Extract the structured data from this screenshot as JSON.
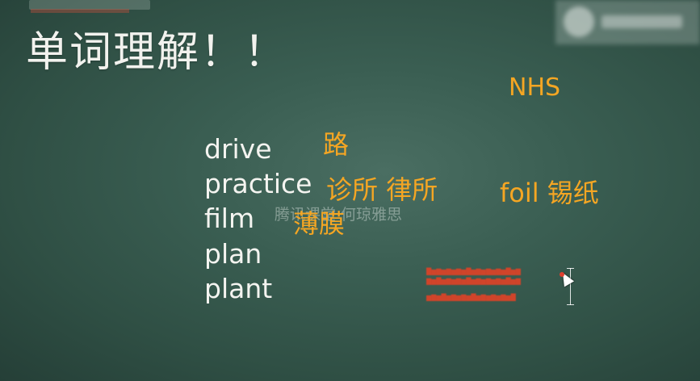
{
  "slide": {
    "title": "单词理解！！",
    "watermark": "腾讯课堂 何琼雅思"
  },
  "words": {
    "drive": "drive",
    "practice": "practice",
    "film": "film",
    "plan": "plan",
    "plant": "plant"
  },
  "annotations": {
    "nhs": "NHS",
    "road": "路",
    "clinic": "诊所 律所",
    "foil": "foil 锡纸",
    "membrane": "薄膜"
  },
  "colors": {
    "background": "#3a5e52",
    "title": "#f2f2ee",
    "english_words": "#f4f4f0",
    "annotation": "#f5a623",
    "red_notes": "#d0442a"
  },
  "icons": {
    "cursor": "text-cursor-icon",
    "pointer": "mouse-pointer-icon"
  }
}
